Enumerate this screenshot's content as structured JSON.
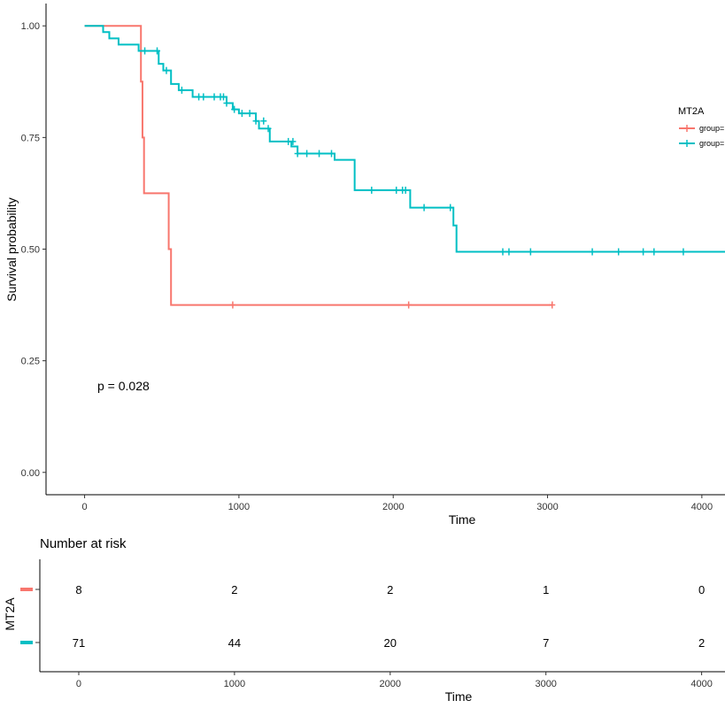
{
  "chart_data": {
    "type": "line",
    "subtype": "kaplan-meier",
    "title": "",
    "xlabel": "Time",
    "ylabel": "Survival probability",
    "xlim": [
      -250,
      4150
    ],
    "ylim": [
      -0.05,
      1.05
    ],
    "x_ticks": [
      0,
      1000,
      2000,
      3000,
      4000
    ],
    "y_ticks": [
      0.0,
      0.25,
      0.5,
      0.75,
      1.0
    ],
    "y_tick_labels": [
      "0.00",
      "0.25",
      "0.50",
      "0.75",
      "1.00"
    ],
    "grid": false,
    "legend": {
      "title": "MT2A",
      "placement": "right"
    },
    "annotation": "p = 0.028",
    "series": [
      {
        "name": "group=",
        "color": "#F8766D",
        "x": [
          0,
          365,
          375,
          385,
          545,
          560,
          3030
        ],
        "y": [
          1.0,
          0.875,
          0.75,
          0.625,
          0.5,
          0.375,
          0.375
        ],
        "censor_x": [
          960,
          2100,
          3030
        ],
        "censor_y": [
          0.375,
          0.375,
          0.375
        ]
      },
      {
        "name": "group=",
        "color": "#00BFC4",
        "x": [
          0,
          120,
          160,
          220,
          350,
          480,
          510,
          560,
          610,
          700,
          920,
          960,
          1000,
          1110,
          1130,
          1200,
          1340,
          1380,
          1620,
          1750,
          2110,
          2390,
          2410,
          4150
        ],
        "y": [
          1.0,
          0.986,
          0.972,
          0.958,
          0.944,
          0.915,
          0.9,
          0.87,
          0.856,
          0.841,
          0.827,
          0.813,
          0.804,
          0.787,
          0.77,
          0.741,
          0.73,
          0.714,
          0.7,
          0.632,
          0.593,
          0.553,
          0.494,
          0.494
        ],
        "censor_x": [
          390,
          470,
          530,
          630,
          740,
          770,
          840,
          880,
          900,
          920,
          970,
          1020,
          1070,
          1110,
          1160,
          1190,
          1320,
          1350,
          1380,
          1440,
          1520,
          1600,
          1860,
          2020,
          2060,
          2080,
          2200,
          2370,
          2710,
          2750,
          2890,
          3290,
          3460,
          3620,
          3690,
          3880
        ],
        "censor_y": [
          0.944,
          0.944,
          0.9,
          0.856,
          0.841,
          0.841,
          0.841,
          0.841,
          0.841,
          0.827,
          0.813,
          0.804,
          0.804,
          0.787,
          0.787,
          0.77,
          0.741,
          0.741,
          0.714,
          0.714,
          0.714,
          0.714,
          0.632,
          0.632,
          0.632,
          0.632,
          0.593,
          0.593,
          0.494,
          0.494,
          0.494,
          0.494,
          0.494,
          0.494,
          0.494,
          0.494
        ]
      }
    ],
    "risk_table": {
      "title": "Number at risk",
      "ylabel": "MT2A",
      "xlabel": "Time",
      "times": [
        0,
        1000,
        2000,
        3000,
        4000
      ],
      "rows": [
        {
          "color": "#F8766D",
          "values": [
            "8",
            "2",
            "2",
            "1",
            "0"
          ]
        },
        {
          "color": "#00BFC4",
          "values": [
            "71",
            "44",
            "20",
            "7",
            "2"
          ]
        }
      ]
    }
  }
}
